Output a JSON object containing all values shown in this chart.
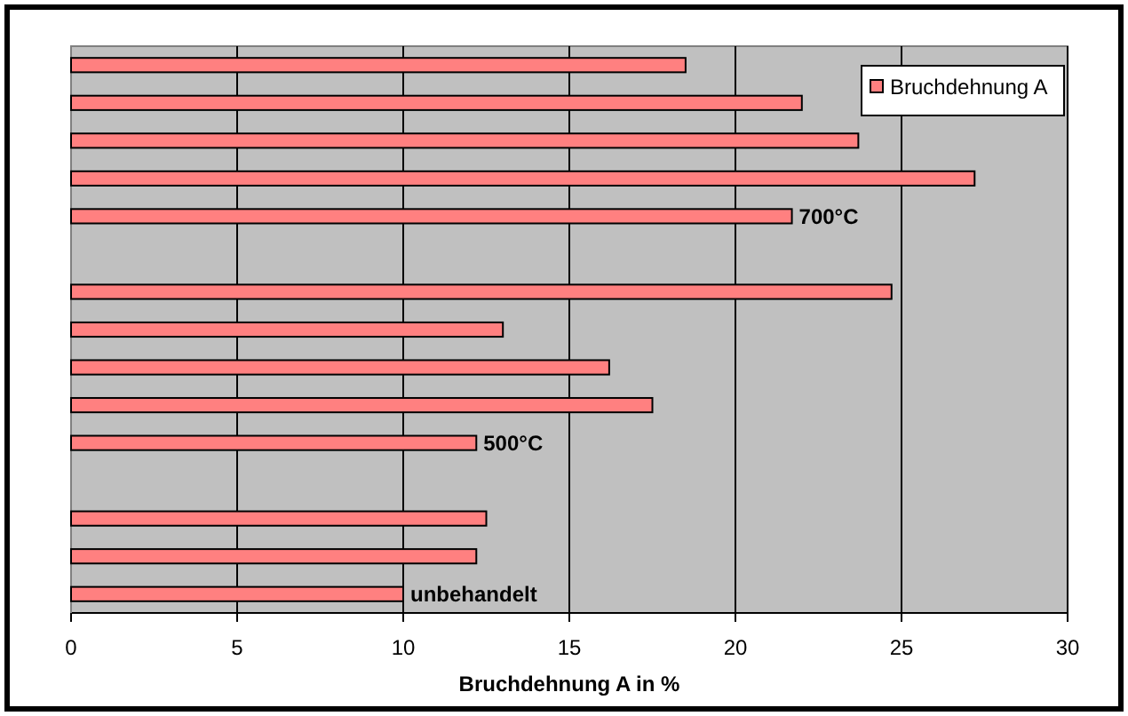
{
  "chart_data": {
    "type": "bar",
    "orientation": "horizontal",
    "xlabel": "Bruchdehnung A in %",
    "categories": [
      null,
      null,
      null,
      null,
      null,
      null,
      null,
      null,
      null,
      null,
      null,
      null,
      null,
      null,
      null
    ],
    "series": [
      {
        "name": "Bruchdehnung A",
        "color": "#ff8080",
        "values": [
          18.5,
          22.0,
          23.7,
          27.2,
          21.7,
          null,
          24.7,
          13.0,
          16.2,
          17.5,
          12.2,
          null,
          12.5,
          12.2,
          10.0
        ]
      }
    ],
    "xlim": [
      0,
      30
    ],
    "xticks": [
      0,
      5,
      10,
      15,
      20,
      25,
      30
    ],
    "grid": "x",
    "legend": "top right",
    "annotations": [
      {
        "text": "700°C",
        "x": 21.7
      },
      {
        "text": "500°C",
        "x": 12.2
      },
      {
        "text": "unbehandelt",
        "x": 10.0
      }
    ]
  }
}
